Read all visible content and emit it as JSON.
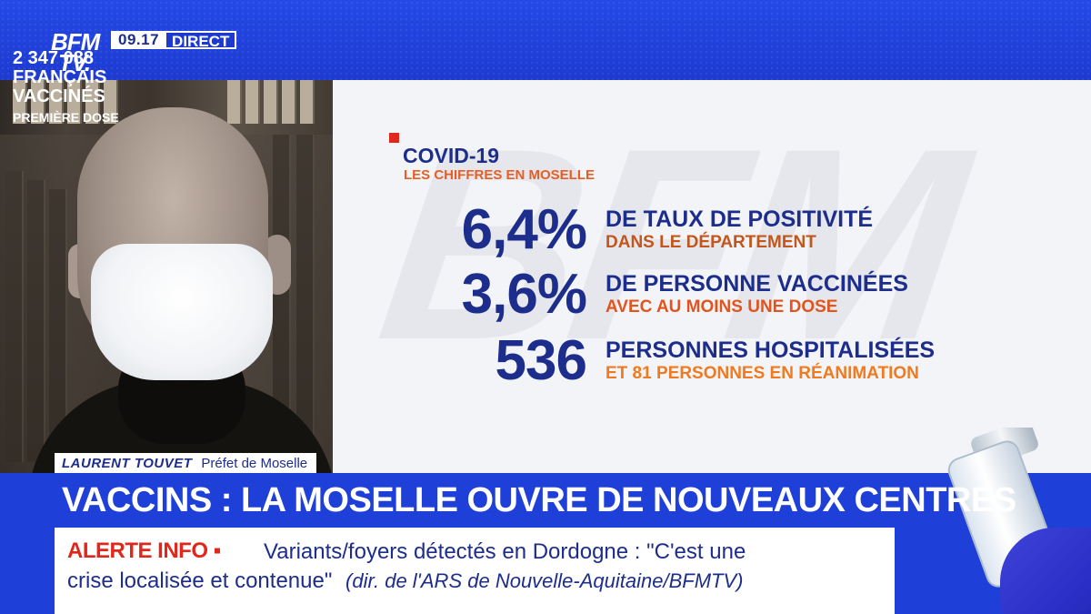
{
  "channel": {
    "logo_line1": "BFM",
    "logo_line2": "TV.",
    "time": "09.17",
    "live_label": "DIRECT"
  },
  "graphic": {
    "watermark": "BFM",
    "title": "COVID-19",
    "subtitle": "LES CHIFFRES EN MOSELLE",
    "stats": [
      {
        "value": "6,4%",
        "label": "DE TAUX DE POSITIVITÉ",
        "sublabel": "DANS LE DÉPARTEMENT",
        "sublabel_color": "#c2561c"
      },
      {
        "value": "3,6%",
        "label": "DE PERSONNE VACCINÉES",
        "sublabel": "AVEC AU MOINS UNE DOSE",
        "sublabel_color": "#e2541d"
      },
      {
        "value": "536",
        "label": "PERSONNES HOSPITALISÉES",
        "sublabel": "ET 81 PERSONNES EN RÉANIMATION",
        "sublabel_color": "#ef7a1f"
      }
    ]
  },
  "speaker": {
    "name": "LAURENT TOUVET",
    "role": "Préfet de Moselle"
  },
  "headline": "VACCINS : LA MOSELLE OUVRE DE NOUVEAUX CENTRES",
  "ticker": {
    "label": "ALERTE INFO ▪",
    "line1": "Variants/foyers détectés en Dordogne : \"C'est une",
    "line2": "crise localisée et contenue\"",
    "source": "(dir. de l'ARS de Nouvelle-Aquitaine/BFMTV)"
  },
  "counter": {
    "number": "2 347 088",
    "line2": "FRANÇAIS",
    "line3": "VACCINÉS",
    "line4": "PREMIÈRE DOSE"
  },
  "colors": {
    "brand_blue": "#1e3fd8",
    "navy": "#1d2d8c",
    "alert_red": "#e1271b",
    "orange": "#e85d24"
  }
}
